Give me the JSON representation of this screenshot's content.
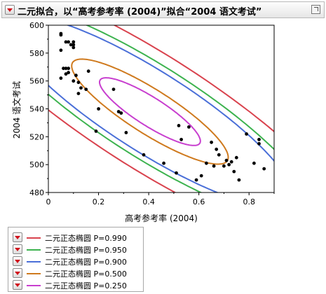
{
  "header": {
    "title": "二元拟合，以“高考参考率 (2004)”拟合“2004 语文考试”"
  },
  "chart_data": {
    "type": "scatter",
    "xlabel": "高考参考率 (2004)",
    "ylabel": "2004 语文考试",
    "xlim": [
      0,
      0.9
    ],
    "ylim": [
      480,
      600
    ],
    "xticks": [
      0,
      0.2,
      0.4,
      0.6,
      0.8
    ],
    "yticks": [
      480,
      500,
      520,
      540,
      560,
      580,
      600
    ],
    "grid": false,
    "points": [
      [
        0.05,
        594
      ],
      [
        0.05,
        593
      ],
      [
        0.05,
        582
      ],
      [
        0.06,
        569
      ],
      [
        0.07,
        569
      ],
      [
        0.08,
        569
      ],
      [
        0.07,
        565
      ],
      [
        0.08,
        566
      ],
      [
        0.07,
        588
      ],
      [
        0.08,
        588
      ],
      [
        0.09,
        586
      ],
      [
        0.1,
        584
      ],
      [
        0.1,
        586
      ],
      [
        0.1,
        588
      ],
      [
        0.05,
        562
      ],
      [
        0.1,
        560
      ],
      [
        0.11,
        564
      ],
      [
        0.13,
        555
      ],
      [
        0.15,
        554
      ],
      [
        0.12,
        559
      ],
      [
        0.12,
        551
      ],
      [
        0.16,
        567
      ],
      [
        0.19,
        524
      ],
      [
        0.2,
        540
      ],
      [
        0.26,
        554
      ],
      [
        0.28,
        538
      ],
      [
        0.29,
        537
      ],
      [
        0.31,
        523
      ],
      [
        0.38,
        507
      ],
      [
        0.46,
        501
      ],
      [
        0.51,
        494
      ],
      [
        0.52,
        528
      ],
      [
        0.53,
        518
      ],
      [
        0.56,
        527
      ],
      [
        0.59,
        489
      ],
      [
        0.61,
        492
      ],
      [
        0.63,
        501
      ],
      [
        0.65,
        516
      ],
      [
        0.66,
        499
      ],
      [
        0.67,
        511
      ],
      [
        0.68,
        507
      ],
      [
        0.7,
        499
      ],
      [
        0.71,
        503
      ],
      [
        0.72,
        500
      ],
      [
        0.73,
        502
      ],
      [
        0.75,
        505
      ],
      [
        0.76,
        489
      ],
      [
        0.79,
        522
      ],
      [
        0.82,
        501
      ],
      [
        0.84,
        518
      ],
      [
        0.84,
        515
      ],
      [
        0.86,
        497
      ],
      [
        0.74,
        495
      ]
    ],
    "ellipses": [
      {
        "name": "二元正态椭圆 P=0.990",
        "color": "#d9434e"
      },
      {
        "name": "二元正态椭圆 P=0.950",
        "color": "#3db34f"
      },
      {
        "name": "二元正态椭圆 P=0.900",
        "color": "#4a6fd8"
      },
      {
        "name": "二元正态椭圆 P=0.500",
        "color": "#cf7a1e"
      },
      {
        "name": "二元正态椭圆 P=0.250",
        "color": "#c83fcf"
      }
    ],
    "ellipse_model": {
      "mean_x": 0.405,
      "mean_y": 538.0,
      "sd_x": 0.265,
      "sd_y": 32.0,
      "correlation": -0.87
    }
  },
  "legend": {
    "items": [
      {
        "label": "二元正态椭圆 P=0.990"
      },
      {
        "label": "二元正态椭圆 P=0.950"
      },
      {
        "label": "二元正态椭圆 P=0.900"
      },
      {
        "label": "二元正态椭圆 P=0.500"
      },
      {
        "label": "二元正态椭圆 P=0.250"
      }
    ]
  }
}
